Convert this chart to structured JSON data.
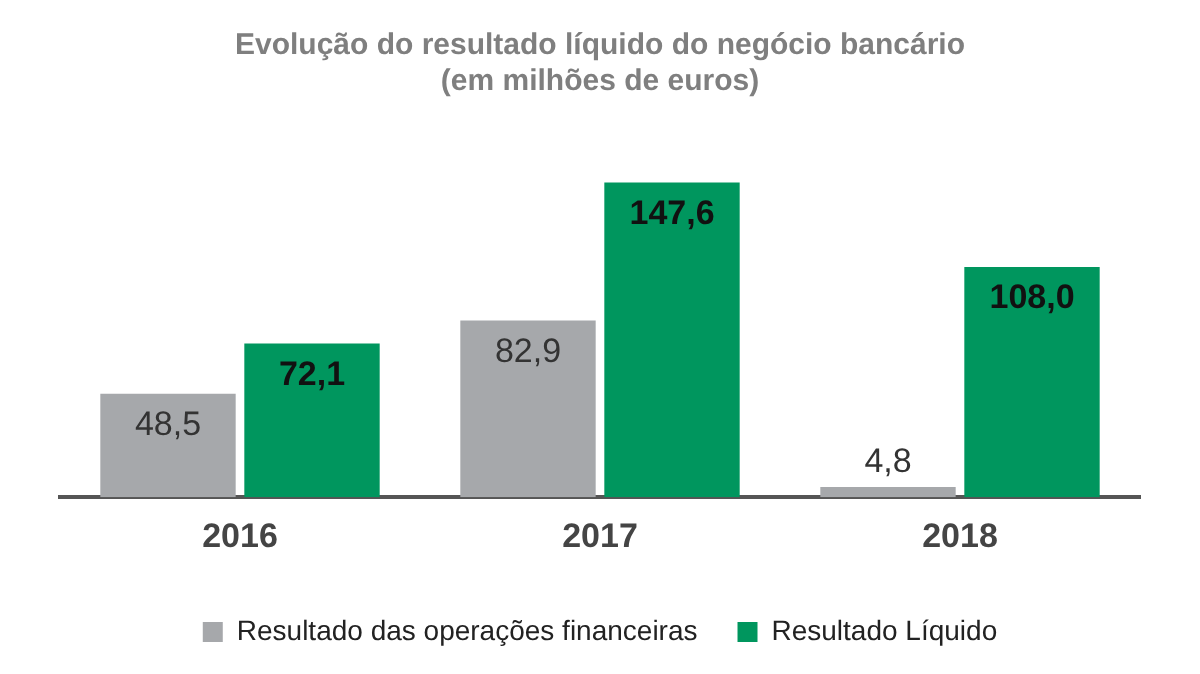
{
  "chart_data": {
    "type": "bar",
    "title": "Evolução do resultado líquido do negócio bancário\n(em milhões de euros)",
    "categories": [
      "2016",
      "2017",
      "2018"
    ],
    "series": [
      {
        "name": "Resultado das operações financeiras",
        "color": "#a6a8ab",
        "values": [
          48.5,
          82.9,
          4.8
        ],
        "value_labels": [
          "48,5",
          "82,9",
          "4,8"
        ]
      },
      {
        "name": "Resultado Líquido",
        "color": "#00965e",
        "values": [
          72.1,
          147.6,
          108.0
        ],
        "value_labels": [
          "72,1",
          "147,6",
          "108,0"
        ]
      }
    ],
    "grid": false,
    "legend": "bottom",
    "tick_labels": "x"
  }
}
